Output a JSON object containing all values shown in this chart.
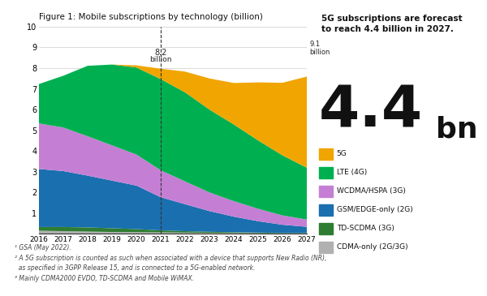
{
  "title": "Figure 1: Mobile subscriptions by technology (billion)",
  "years": [
    2016,
    2017,
    2018,
    2019,
    2020,
    2021,
    2022,
    2023,
    2024,
    2025,
    2026,
    2027
  ],
  "series": {
    "CDMA-only (2G/3G)": {
      "color": "#b0b0b0",
      "values": [
        0.15,
        0.13,
        0.11,
        0.09,
        0.08,
        0.07,
        0.06,
        0.05,
        0.04,
        0.03,
        0.02,
        0.02
      ]
    },
    "TD-SCDMA (3G)": {
      "color": "#2e7d32",
      "values": [
        0.18,
        0.2,
        0.2,
        0.18,
        0.15,
        0.1,
        0.07,
        0.05,
        0.04,
        0.03,
        0.02,
        0.02
      ]
    },
    "GSM/EDGE-only (2G)": {
      "color": "#1a6faf",
      "values": [
        2.8,
        2.7,
        2.5,
        2.3,
        2.1,
        1.6,
        1.3,
        1.0,
        0.75,
        0.55,
        0.4,
        0.3
      ]
    },
    "WCDMA/HSPA (3G)": {
      "color": "#c47fd4",
      "values": [
        2.2,
        2.1,
        1.9,
        1.7,
        1.5,
        1.3,
        1.1,
        0.9,
        0.75,
        0.6,
        0.45,
        0.35
      ]
    },
    "LTE (4G)": {
      "color": "#00b050",
      "values": [
        1.9,
        2.5,
        3.4,
        3.9,
        4.2,
        4.4,
        4.3,
        4.0,
        3.7,
        3.3,
        2.9,
        2.5
      ]
    },
    "5G": {
      "color": "#f0a500",
      "values": [
        0.0,
        0.0,
        0.0,
        0.0,
        0.1,
        0.5,
        1.0,
        1.5,
        2.0,
        2.8,
        3.5,
        4.4
      ]
    }
  },
  "ylim": [
    0,
    10
  ],
  "yticks": [
    0,
    1,
    2,
    3,
    4,
    5,
    6,
    7,
    8,
    9,
    10
  ],
  "vline_year": 2021,
  "forecast_text": "5G subscriptions are forecast\nto reach 4.4 billion in 2027.",
  "big_number": "4.4",
  "big_unit": "bn",
  "footnotes": "¹ GSA (May 2022).\n² A 5G subscription is counted as such when associated with a device that supports New Radio (NR),\n  as specified in 3GPP Release 15, and is connected to a 5G-enabled network.\n³ Mainly CDMA2000 EVDO, TD-SCDMA and Mobile WiMAX."
}
